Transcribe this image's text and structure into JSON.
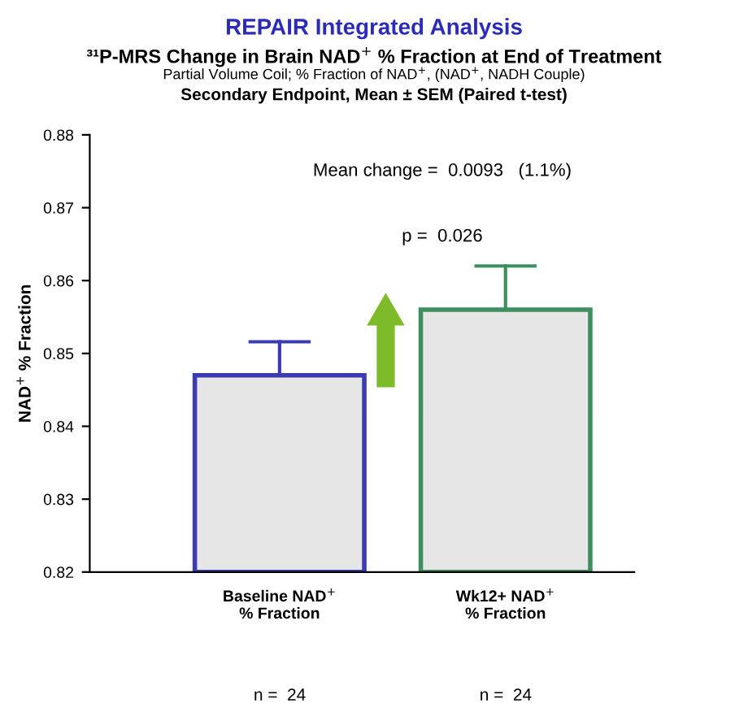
{
  "chart_data": {
    "type": "bar",
    "title": "REPAIR Integrated Analysis",
    "subtitle": "³¹P-MRS Change in Brain NAD$^{+}$ % Fraction at End of Treatment",
    "ylabel": "NAD$^{+}$ % Fraction",
    "categories": [
      "Baseline NAD$^{+}$\n% Fraction",
      "Wk12+ NAD$^{+}$\n% Fraction"
    ],
    "values": [
      0.847,
      0.856
    ],
    "errors": [
      [
        0.847,
        0.8516
      ],
      [
        0.856,
        0.862
      ]
    ],
    "colors": [
      "#3b3bb3",
      "#3d8f5e"
    ],
    "ylim": [
      0.82,
      0.88
    ],
    "yticks": [
      0.82,
      0.83,
      0.84,
      0.85,
      0.86,
      0.87,
      0.88
    ],
    "grid": false,
    "legend": false,
    "annotations": [
      "Partial Volume Coil; % Fraction of NAD$^{+}$, (NAD$^{+}$, NADH Couple)",
      "Secondary Endpoint, Mean ± SEM (Paired t-test)",
      "Mean change =  0.0093   (1.1%)",
      "p =  0.026",
      "n =  24",
      "n =  24"
    ]
  }
}
